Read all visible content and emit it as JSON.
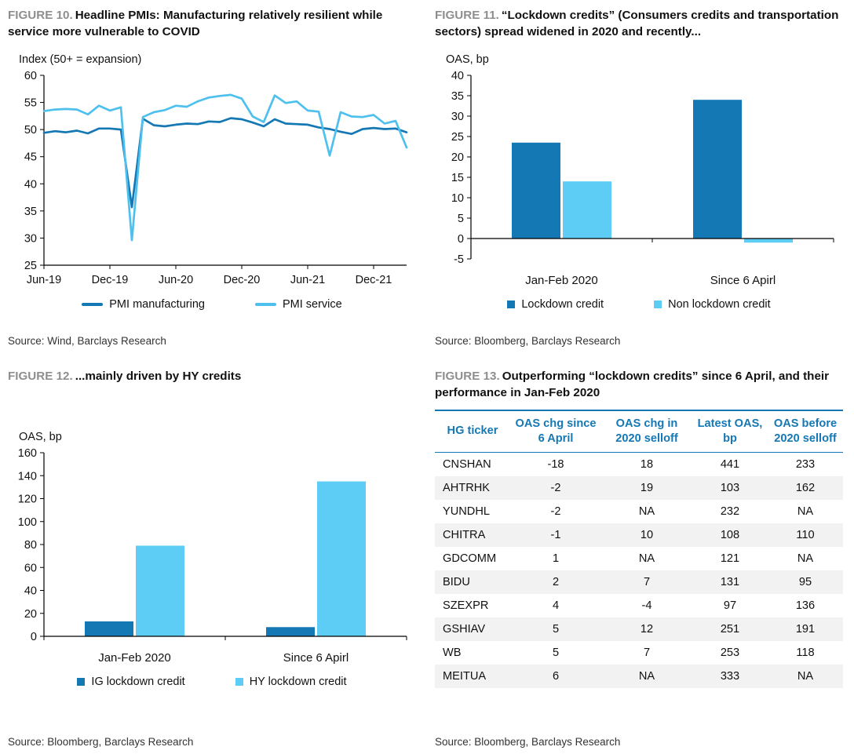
{
  "colors": {
    "accent_blue": "#1478b5",
    "dark_blue": "#1478b5",
    "light_blue": "#5ecdf5",
    "figure_label_gray": "#8e8e8e",
    "row_alt": "#f2f2f2"
  },
  "figures": {
    "fig10": {
      "label": "FIGURE 10.",
      "title": "Headline PMIs: Manufacturing relatively resilient while service more vulnerable to COVID",
      "source": "Source: Wind, Barclays Research"
    },
    "fig11": {
      "label": "FIGURE 11.",
      "title": "“Lockdown credits” (Consumers credits and transportation sectors) spread widened in 2020 and recently...",
      "source": "Source: Bloomberg, Barclays Research"
    },
    "fig12": {
      "label": "FIGURE 12.",
      "title": "...mainly driven by HY credits",
      "source": "Source: Bloomberg, Barclays Research"
    },
    "fig13": {
      "label": "FIGURE 13.",
      "title": "Outperforming “lockdown credits” since 6 April, and their performance in Jan-Feb 2020",
      "source": "Source: Bloomberg, Barclays Research"
    }
  },
  "chart_data": [
    {
      "id": "fig10",
      "type": "line",
      "title": "Headline PMIs: Manufacturing relatively resilient while service more vulnerable to COVID",
      "axis_label": "Index (50+ = expansion)",
      "ylim": [
        25,
        60
      ],
      "ytick_step": 5,
      "grid": false,
      "legend_position": "bottom",
      "x_ticks": [
        "Jun-19",
        "Dec-19",
        "Jun-20",
        "Dec-20",
        "Jun-21",
        "Dec-21"
      ],
      "x": [
        "Jun-19",
        "Jul-19",
        "Aug-19",
        "Sep-19",
        "Oct-19",
        "Nov-19",
        "Dec-19",
        "Jan-20",
        "Feb-20",
        "Mar-20",
        "Apr-20",
        "May-20",
        "Jun-20",
        "Jul-20",
        "Aug-20",
        "Sep-20",
        "Oct-20",
        "Nov-20",
        "Dec-20",
        "Jan-21",
        "Feb-21",
        "Mar-21",
        "Apr-21",
        "May-21",
        "Jun-21",
        "Jul-21",
        "Aug-21",
        "Sep-21",
        "Oct-21",
        "Nov-21",
        "Dec-21",
        "Jan-22",
        "Feb-22",
        "Mar-22"
      ],
      "series": [
        {
          "name": "PMI manufacturing",
          "color": "#1478b5",
          "values": [
            49.4,
            49.7,
            49.5,
            49.8,
            49.3,
            50.2,
            50.2,
            50.0,
            35.7,
            52.0,
            50.8,
            50.6,
            50.9,
            51.1,
            51.0,
            51.5,
            51.4,
            52.1,
            51.9,
            51.3,
            50.6,
            51.9,
            51.1,
            51.0,
            50.9,
            50.4,
            50.1,
            49.6,
            49.2,
            50.1,
            50.3,
            50.1,
            50.2,
            49.5
          ]
        },
        {
          "name": "PMI service",
          "color": "#4ec0ed",
          "values": [
            53.4,
            53.7,
            53.8,
            53.7,
            52.8,
            54.4,
            53.5,
            54.1,
            29.6,
            52.3,
            53.2,
            53.6,
            54.4,
            54.2,
            55.2,
            55.9,
            56.2,
            56.4,
            55.7,
            52.4,
            51.4,
            56.3,
            54.9,
            55.2,
            53.5,
            53.3,
            45.2,
            53.2,
            52.4,
            52.3,
            52.7,
            51.1,
            51.6,
            46.7
          ]
        }
      ]
    },
    {
      "id": "fig11",
      "type": "bar",
      "title": "“Lockdown credits” (Consumers credits and transportation sectors) spread widened in 2020 and recently...",
      "axis_label": "OAS, bp",
      "ylim": [
        -5,
        40
      ],
      "ytick_step": 5,
      "grid": false,
      "legend_position": "bottom",
      "categories": [
        "Jan-Feb 2020",
        "Since 6 Apirl"
      ],
      "series": [
        {
          "name": "Lockdown credit",
          "color": "#1478b5",
          "values": [
            23.5,
            34
          ]
        },
        {
          "name": "Non lockdown credit",
          "color": "#5ecdf5",
          "values": [
            14,
            -1
          ]
        }
      ]
    },
    {
      "id": "fig12",
      "type": "bar",
      "title": "...mainly driven by HY credits",
      "axis_label": "OAS, bp",
      "ylim": [
        0,
        160
      ],
      "ytick_step": 20,
      "grid": false,
      "legend_position": "bottom",
      "categories": [
        "Jan-Feb 2020",
        "Since 6 Apirl"
      ],
      "series": [
        {
          "name": "IG lockdown credit",
          "color": "#1478b5",
          "values": [
            13,
            8
          ]
        },
        {
          "name": "HY lockdown credit",
          "color": "#5ecdf5",
          "values": [
            79,
            135
          ]
        }
      ]
    },
    {
      "id": "fig13",
      "type": "table",
      "title": "Outperforming “lockdown credits” since 6 April, and their performance in Jan-Feb 2020",
      "columns": [
        "HG ticker",
        "OAS chg since 6 April",
        "OAS chg in 2020 selloff",
        "Latest OAS, bp",
        "OAS before 2020 selloff"
      ],
      "rows": [
        [
          "CNSHAN",
          "-18",
          "18",
          "441",
          "233"
        ],
        [
          "AHTRHK",
          "-2",
          "19",
          "103",
          "162"
        ],
        [
          "YUNDHL",
          "-2",
          "NA",
          "232",
          "NA"
        ],
        [
          "CHITRA",
          "-1",
          "10",
          "108",
          "110"
        ],
        [
          "GDCOMM",
          "1",
          "NA",
          "121",
          "NA"
        ],
        [
          "BIDU",
          "2",
          "7",
          "131",
          "95"
        ],
        [
          "SZEXPR",
          "4",
          "-4",
          "97",
          "136"
        ],
        [
          "GSHIAV",
          "5",
          "12",
          "251",
          "191"
        ],
        [
          "WB",
          "5",
          "7",
          "253",
          "118"
        ],
        [
          "MEITUA",
          "6",
          "NA",
          "333",
          "NA"
        ]
      ]
    }
  ]
}
